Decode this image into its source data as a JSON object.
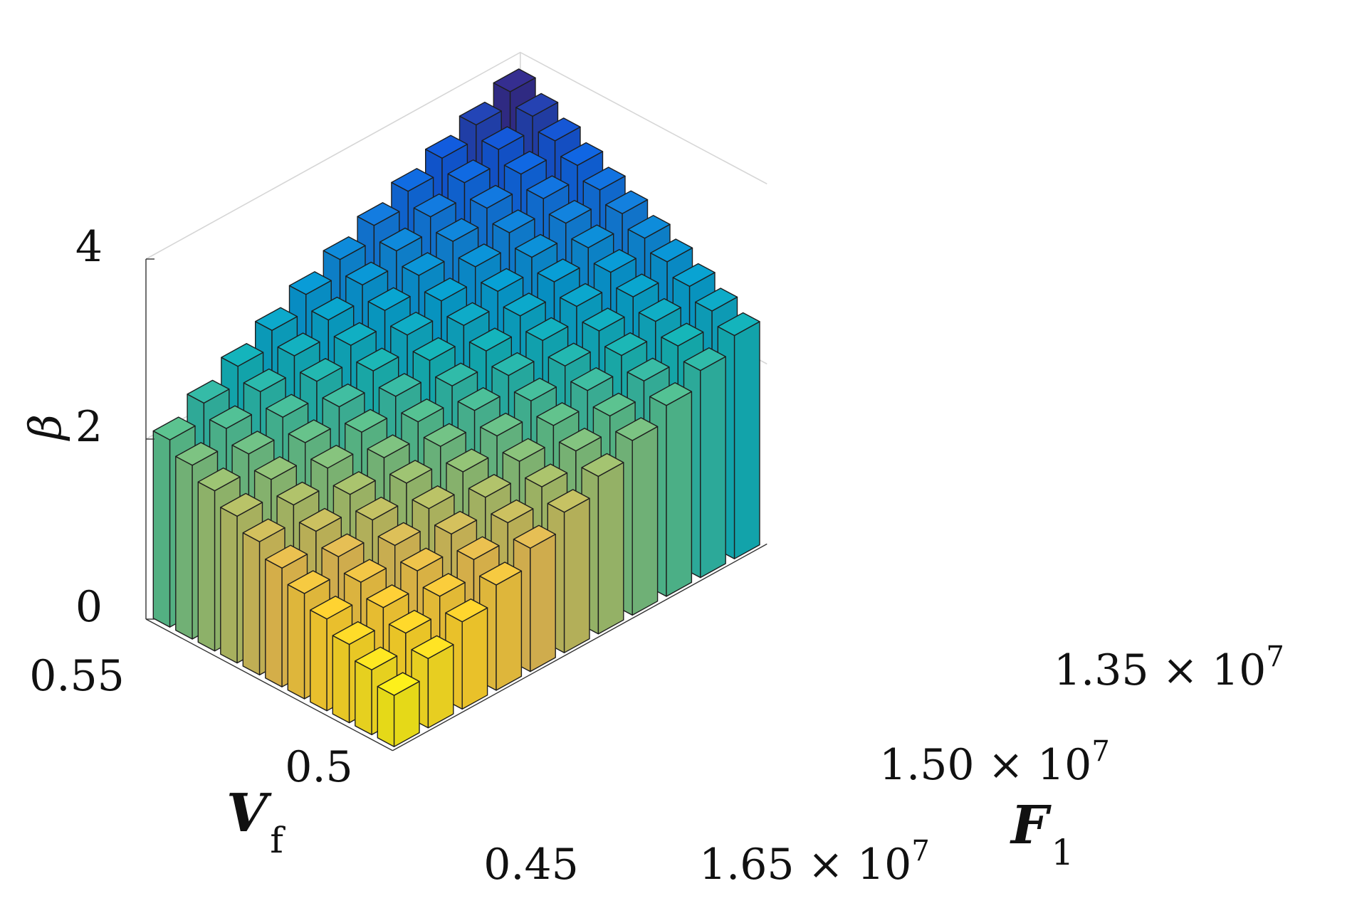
{
  "chart_data": {
    "type": "bar3d",
    "title": "",
    "xlabel": "V_f",
    "xlabel_main": "V",
    "xlabel_sub": "f",
    "ylabel": "F_1",
    "ylabel_main": "F",
    "ylabel_sub": "1",
    "zlabel": "β",
    "zlim": [
      0,
      4
    ],
    "z_ticks": [
      "0",
      "2",
      "4"
    ],
    "vf_tick_labels": [
      "0.55",
      "0.5",
      "0.45"
    ],
    "f1_tick_mantissas": [
      "1.35",
      "1.50",
      "1.65"
    ],
    "f1_tick_suffix": " × 10",
    "f1_tick_exponent": "7",
    "grid": true,
    "colormap": "parula",
    "vf_values": [
      0.45,
      0.46,
      0.47,
      0.48,
      0.49,
      0.5,
      0.51,
      0.52,
      0.53,
      0.54,
      0.55
    ],
    "f1_values": [
      13500000.0,
      13800000.0,
      14100000.0,
      14400000.0,
      14700000.0,
      15000000.0,
      15300000.0,
      15600000.0,
      15900000.0,
      16200000.0,
      16500000.0
    ],
    "beta_rows_by_vf": [
      [
        2.48,
        2.3,
        2.12,
        1.94,
        1.75,
        1.56,
        1.37,
        1.17,
        0.97,
        0.77,
        0.57
      ],
      [
        2.62,
        2.44,
        2.26,
        2.08,
        1.9,
        1.71,
        1.52,
        1.32,
        1.12,
        0.92,
        0.72
      ],
      [
        2.76,
        2.58,
        2.41,
        2.23,
        2.05,
        1.86,
        1.67,
        1.47,
        1.27,
        1.07,
        0.87
      ],
      [
        2.9,
        2.72,
        2.55,
        2.37,
        2.19,
        2.01,
        1.82,
        1.62,
        1.42,
        1.22,
        1.02
      ],
      [
        3.03,
        2.86,
        2.69,
        2.52,
        2.34,
        2.16,
        1.97,
        1.77,
        1.57,
        1.37,
        1.17
      ],
      [
        3.17,
        3.0,
        2.83,
        2.66,
        2.48,
        2.3,
        2.11,
        1.92,
        1.72,
        1.52,
        1.32
      ],
      [
        3.3,
        3.14,
        2.97,
        2.8,
        2.63,
        2.45,
        2.26,
        2.07,
        1.88,
        1.68,
        1.48
      ],
      [
        3.44,
        3.28,
        3.11,
        2.94,
        2.77,
        2.6,
        2.41,
        2.22,
        2.03,
        1.83,
        1.63
      ],
      [
        3.58,
        3.42,
        3.25,
        3.09,
        2.92,
        2.74,
        2.56,
        2.37,
        2.18,
        1.98,
        1.78
      ],
      [
        3.72,
        3.56,
        3.4,
        3.23,
        3.06,
        2.89,
        2.71,
        2.52,
        2.33,
        2.13,
        1.93
      ],
      [
        3.86,
        3.7,
        3.54,
        3.38,
        3.21,
        3.04,
        2.86,
        2.67,
        2.48,
        2.28,
        2.08
      ]
    ]
  }
}
